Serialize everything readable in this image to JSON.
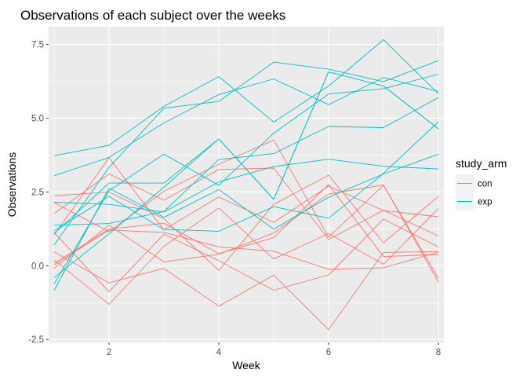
{
  "chart_data": {
    "type": "line",
    "title": "Observations of each subject over the weeks",
    "xlabel": "Week",
    "ylabel": "Observations",
    "xlim": [
      0.9,
      8.1
    ],
    "ylim": [
      -2.6,
      8.1
    ],
    "x_ticks": [
      2,
      4,
      6,
      8
    ],
    "y_ticks": [
      -2.5,
      0.0,
      2.5,
      5.0,
      7.5
    ],
    "x_tick_labels": [
      "2",
      "4",
      "6",
      "8"
    ],
    "y_tick_labels": [
      "-2.5",
      "0.0",
      "2.5",
      "5.0",
      "7.5"
    ],
    "grid": true,
    "legend": {
      "title": "study_arm",
      "placement": "right",
      "entries": [
        {
          "label": "con",
          "color": "#F8766D"
        },
        {
          "label": "exp",
          "color": "#00BFC4"
        }
      ]
    },
    "x": [
      1,
      2,
      3,
      4,
      5,
      6,
      7,
      8
    ],
    "series": [
      {
        "group": "con",
        "values": [
          0.2,
          -1.31,
          0.66,
          1.96,
          0.23,
          1.09,
          0.05,
          1.94
        ]
      },
      {
        "group": "con",
        "values": [
          1.13,
          -0.88,
          1.07,
          0.17,
          -0.83,
          -0.31,
          1.58,
          0.64
        ]
      },
      {
        "group": "con",
        "values": [
          1.77,
          3.11,
          2.22,
          3.26,
          3.31,
          0.89,
          1.88,
          1.01
        ]
      },
      {
        "group": "con",
        "values": [
          1.04,
          3.66,
          1.22,
          2.33,
          1.47,
          2.7,
          1.87,
          1.66
        ]
      },
      {
        "group": "con",
        "values": [
          0.47,
          -0.58,
          -0.09,
          -1.37,
          -0.32,
          -2.17,
          0.45,
          0.48
        ]
      },
      {
        "group": "con",
        "values": [
          2.37,
          2.5,
          1.59,
          -0.16,
          2.08,
          3.07,
          0.78,
          2.35
        ]
      },
      {
        "group": "con",
        "values": [
          0.03,
          1.21,
          1.13,
          0.64,
          0.49,
          -0.12,
          -0.07,
          0.46
        ]
      },
      {
        "group": "con",
        "values": [
          -0.09,
          1.37,
          0.13,
          0.39,
          1.11,
          2.43,
          2.74,
          -0.55
        ]
      },
      {
        "group": "con",
        "values": [
          0.08,
          1.24,
          1.44,
          0.41,
          0.95,
          2.75,
          0.31,
          0.38
        ]
      },
      {
        "group": "con",
        "values": [
          2.14,
          1.15,
          2.52,
          3.44,
          4.26,
          0.97,
          2.73,
          -0.42
        ]
      },
      {
        "group": "exp",
        "values": [
          3.05,
          3.67,
          4.84,
          5.8,
          6.33,
          5.46,
          6.38,
          5.91
        ]
      },
      {
        "group": "exp",
        "values": [
          -0.84,
          2.63,
          1.64,
          2.58,
          1.24,
          2.32,
          3.11,
          3.78
        ]
      },
      {
        "group": "exp",
        "values": [
          2.15,
          2.08,
          1.82,
          2.84,
          3.36,
          3.61,
          3.37,
          3.28
        ]
      },
      {
        "group": "exp",
        "values": [
          -0.62,
          2.54,
          3.78,
          2.73,
          4.49,
          5.82,
          6.0,
          6.49
        ]
      },
      {
        "group": "exp",
        "values": [
          0.7,
          3.33,
          5.34,
          5.57,
          6.9,
          6.66,
          6.24,
          6.95
        ]
      },
      {
        "group": "exp",
        "values": [
          3.73,
          4.08,
          5.4,
          6.41,
          4.87,
          6.09,
          7.66,
          5.83
        ]
      },
      {
        "group": "exp",
        "values": [
          1.18,
          2.35,
          1.23,
          1.17,
          2.0,
          1.61,
          3.13,
          4.88
        ]
      },
      {
        "group": "exp",
        "values": [
          1.37,
          1.43,
          1.84,
          3.6,
          3.8,
          4.72,
          4.68,
          5.7
        ]
      },
      {
        "group": "exp",
        "values": [
          -0.4,
          1.08,
          2.66,
          4.3,
          2.25,
          6.57,
          6.09,
          4.64
        ]
      },
      {
        "group": "exp",
        "values": [
          1.09,
          2.8,
          2.8,
          4.3,
          2.25,
          6.57,
          6.09,
          4.64
        ]
      }
    ]
  }
}
